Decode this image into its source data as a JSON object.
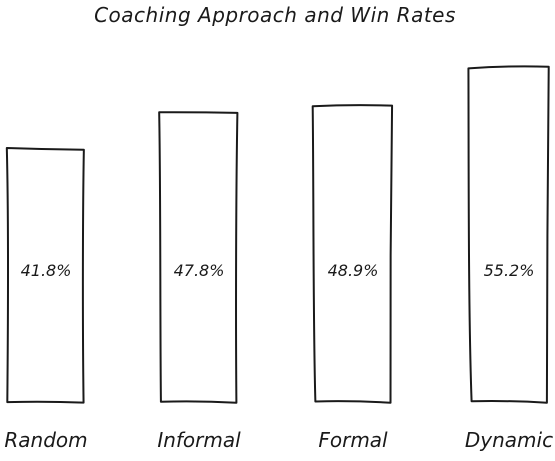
{
  "chart_data": {
    "type": "bar",
    "title": "Coaching Approach and Win Rates",
    "xlabel": "",
    "ylabel": "",
    "categories": [
      "Random",
      "Informal",
      "Formal",
      "Dynamic"
    ],
    "values": [
      41.8,
      47.8,
      48.9,
      55.2
    ],
    "value_labels": [
      "41.8%",
      "47.8%",
      "48.9%",
      "55.2%"
    ],
    "ylim": [
      0,
      58
    ],
    "grid": false,
    "legend": "none",
    "style": "hand-drawn sketch",
    "colors": {
      "stroke": "#1a1a1a",
      "fill": "none",
      "background": "#ffffff"
    }
  }
}
